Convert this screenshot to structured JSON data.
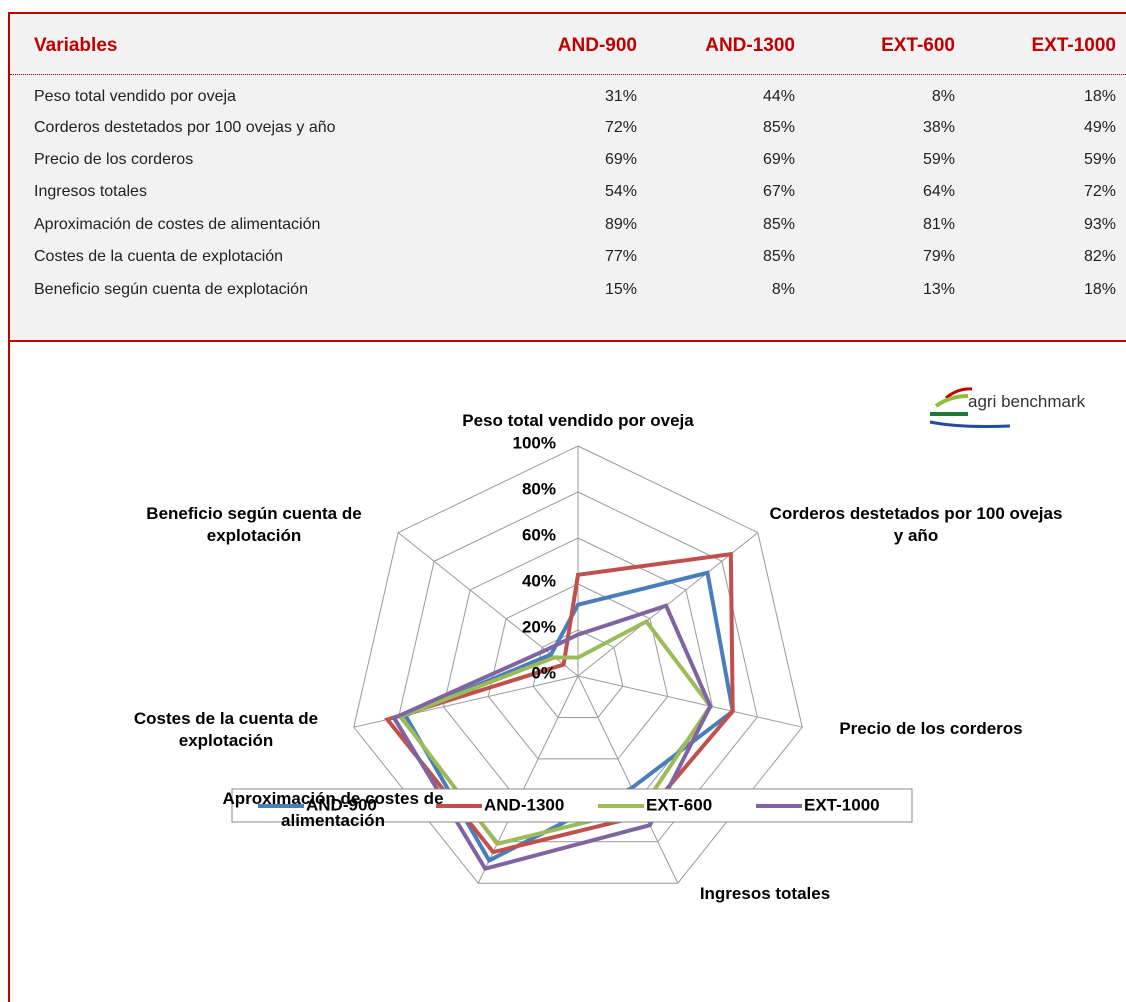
{
  "table": {
    "header": [
      "Variables",
      "AND-900",
      "AND-1300",
      "EXT-600",
      "EXT-1000"
    ],
    "rows": [
      [
        "Peso total vendido por oveja",
        "31%",
        "44%",
        "8%",
        "18%"
      ],
      [
        "Corderos destetados por 100 ovejas y año",
        "72%",
        "85%",
        "38%",
        "49%"
      ],
      [
        "Precio de los corderos",
        "69%",
        "69%",
        "59%",
        "59%"
      ],
      [
        "Ingresos totales",
        "54%",
        "67%",
        "64%",
        "72%"
      ],
      [
        "Aproximación de costes de alimentación",
        "89%",
        "85%",
        "81%",
        "93%"
      ],
      [
        "Costes de la cuenta de explotación",
        "77%",
        "85%",
        "79%",
        "82%"
      ],
      [
        "Beneficio según cuenta de explotación",
        "15%",
        "8%",
        "13%",
        "18%"
      ]
    ]
  },
  "logo": "agri benchmark",
  "chart_data": {
    "type": "radar",
    "categories": [
      "Peso total vendido por oveja",
      "Corderos destetados por 100 ovejas y año",
      "Precio de los corderos",
      "Ingresos totales",
      "Aproximación de costes de alimentación",
      "Costes de la cuenta de explotación",
      "Beneficio según cuenta de explotación"
    ],
    "ylim": [
      0,
      100
    ],
    "yticks": [
      {
        "value": 0,
        "label": "0%"
      },
      {
        "value": 20,
        "label": "20%"
      },
      {
        "value": 40,
        "label": "40%"
      },
      {
        "value": 60,
        "label": "60%"
      },
      {
        "value": 80,
        "label": "80%"
      },
      {
        "value": 100,
        "label": "100%"
      }
    ],
    "grid": true,
    "legend": "bottom",
    "series": [
      {
        "name": "AND-900",
        "color": "#4a7ebb",
        "values": [
          31,
          72,
          69,
          54,
          89,
          77,
          15
        ]
      },
      {
        "name": "AND-1300",
        "color": "#c0504d",
        "values": [
          44,
          85,
          69,
          67,
          85,
          85,
          8
        ]
      },
      {
        "name": "EXT-600",
        "color": "#9bbb59",
        "values": [
          8,
          38,
          59,
          64,
          81,
          79,
          13
        ]
      },
      {
        "name": "EXT-1000",
        "color": "#8064a2",
        "values": [
          18,
          49,
          59,
          72,
          93,
          82,
          18
        ]
      }
    ]
  }
}
